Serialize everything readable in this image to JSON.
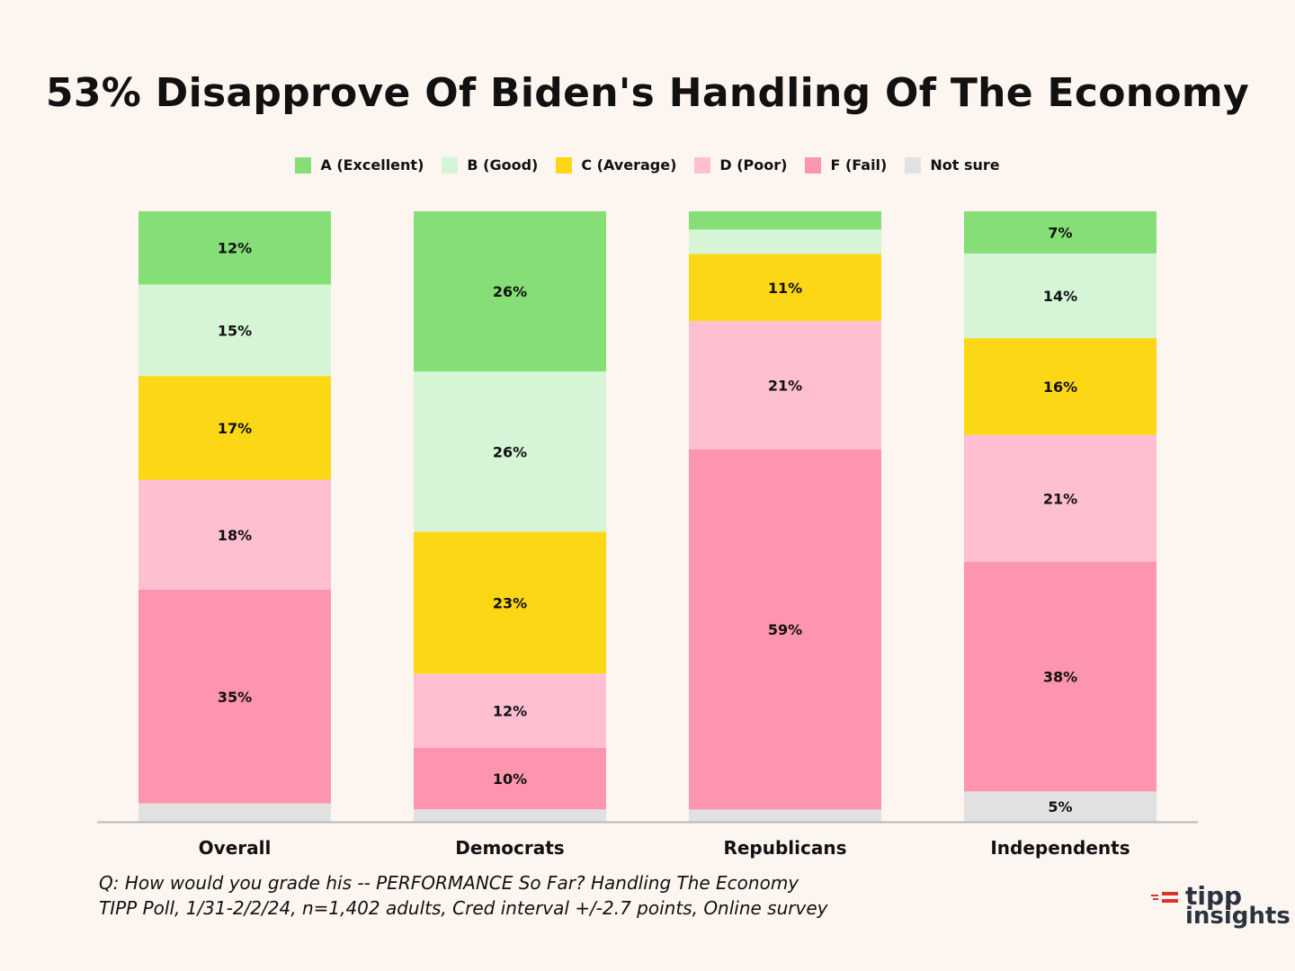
{
  "chart_data": {
    "type": "bar",
    "stacked": true,
    "title": "53% Disapprove Of Biden's Handling Of The Economy",
    "categories": [
      "Overall",
      "Democrats",
      "Republicans",
      "Independents"
    ],
    "series": [
      {
        "name": "A (Excellent)",
        "color": "#86df76",
        "values": [
          12,
          26,
          3,
          7
        ],
        "labels": [
          "12%",
          "26%",
          "",
          "7%"
        ]
      },
      {
        "name": "B (Good)",
        "color": "#d6f5d6",
        "values": [
          15,
          26,
          4,
          14
        ],
        "labels": [
          "15%",
          "26%",
          "",
          "14%"
        ]
      },
      {
        "name": "C (Average)",
        "color": "#fcd716",
        "values": [
          17,
          23,
          11,
          16
        ],
        "labels": [
          "17%",
          "23%",
          "11%",
          "16%"
        ]
      },
      {
        "name": "D (Poor)",
        "color": "#fec0d0",
        "values": [
          18,
          12,
          21,
          21
        ],
        "labels": [
          "18%",
          "12%",
          "21%",
          "21%"
        ]
      },
      {
        "name": "F (Fail)",
        "color": "#fe95ae",
        "values": [
          35,
          10,
          59,
          38
        ],
        "labels": [
          "35%",
          "10%",
          "59%",
          "38%"
        ]
      },
      {
        "name": "Not sure",
        "color": "#e1e1e1",
        "values": [
          3,
          2,
          2,
          5
        ],
        "labels": [
          "",
          "",
          "",
          "5%"
        ]
      }
    ],
    "ylim": [
      0,
      100
    ],
    "grid": false,
    "legend_position": "top"
  },
  "footnote": {
    "line1": "Q:  How would you grade his -- PERFORMANCE So Far? Handling The Economy",
    "line2": "TIPP Poll, 1/31-2/2/24, n=1,402 adults, Cred interval +/-2.7 points, Online survey"
  },
  "logo": {
    "line1": "tipp",
    "line2": "insights",
    "accent_color": "#e0322b"
  }
}
